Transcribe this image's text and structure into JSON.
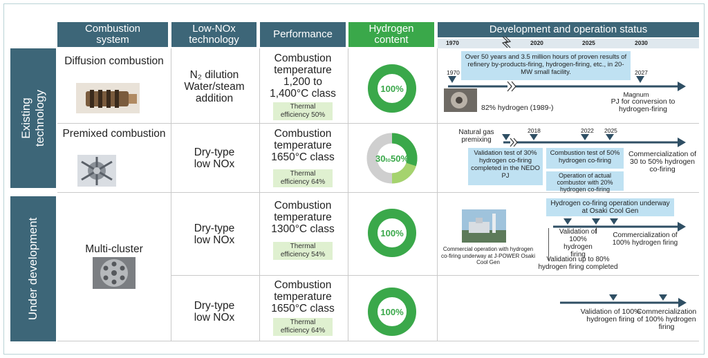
{
  "headers": {
    "combustion": "Combustion system",
    "lownox": "Low-NOx technology",
    "performance": "Performance",
    "hydrogen": "Hydrogen content",
    "development": "Development and operation status"
  },
  "timeline_years": [
    "1970",
    "2020",
    "2025",
    "2030"
  ],
  "categories": {
    "existing": "Existing technology",
    "under": "Under development"
  },
  "rows": [
    {
      "system": "Diffusion combustion",
      "lownox": [
        "N₂ dilution",
        "Water/steam",
        "addition"
      ],
      "perf": [
        "Combustion",
        "temperature",
        "1,200 to",
        "1,400°C class"
      ],
      "eff": [
        "Thermal",
        "efficiency 50%"
      ],
      "h2": "100%",
      "dev": {
        "banner": "Over 50 years and 3.5 million hours of proven results of refinery by-products-firing, hydrogen-firing, etc., in 20-MW small facility.",
        "y1970": "1970",
        "y2027": "2027",
        "photo_label": "82% hydrogen (1989-)",
        "magnum": "Magnum",
        "magnum_note": "PJ for conversion to hydrogen-firing"
      }
    },
    {
      "system": "Premixed combustion",
      "lownox": [
        "Dry-type",
        "low NOx"
      ],
      "perf": [
        "Combustion",
        "temperature",
        "1650°C class"
      ],
      "eff": [
        "Thermal",
        "efficiency 64%"
      ],
      "h2_a": "30",
      "h2_to": "to",
      "h2_b": "50%",
      "h2_fraction_min": 0.3,
      "h2_fraction_max": 0.5,
      "dev": {
        "ng": "Natural gas premixing",
        "y2018": "2018",
        "y2022": "2022",
        "y2025": "2025",
        "val": "Validation test of 30% hydrogen co-firing completed in the NEDO PJ",
        "comb": "Combustion test of 50% hydrogen co-firing",
        "oper": "Operation of actual combustor with 20% hydrogen co-firing",
        "comm": "Commercialization of 30 to 50% hydrogen co-firing"
      }
    },
    {
      "system": "Multi-cluster",
      "lownox": [
        "Dry-type",
        "low NOx"
      ],
      "perf": [
        "Combustion",
        "temperature",
        "1300°C class"
      ],
      "eff": [
        "Thermal",
        "efficiency 54%"
      ],
      "h2": "100%",
      "dev": {
        "banner": "Hydrogen co-firing operation underway at Osaki Cool Gen",
        "photo_caption": "Commercial operation with hydrogen co-firing underway at J-POWER Osaki Cool Gen",
        "val100": "Validation of 100% hydrogen firing",
        "val80": "Validation up to 80% hydrogen firing completed",
        "comm": "Commercialization of 100% hydrogen firing"
      }
    },
    {
      "lownox": [
        "Dry-type",
        "low NOx"
      ],
      "perf": [
        "Combustion",
        "temperature",
        "1650°C class"
      ],
      "eff": [
        "Thermal",
        "efficiency 64%"
      ],
      "h2": "100%",
      "dev": {
        "val": "Validation of 100% hydrogen firing",
        "comm": "Commercialization of 100% hydrogen firing"
      }
    }
  ],
  "colors": {
    "header": "#3d6678",
    "green": "#3aa84a",
    "light_green": "#a5d36e",
    "gray_ring": "#cfcfcf",
    "arrow": "#2f4f64",
    "blue_box": "#bfe1f2",
    "eff_box": "#dff0d0"
  }
}
